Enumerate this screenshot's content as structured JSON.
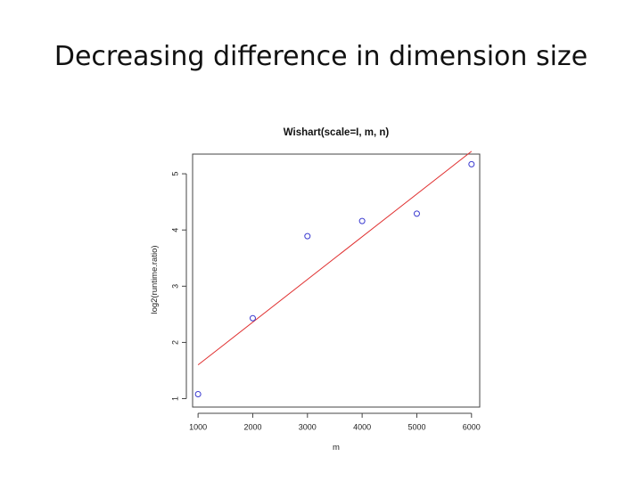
{
  "slide": {
    "title": "Decreasing difference in dimension size"
  },
  "chart_data": {
    "type": "scatter",
    "title": "Wishart(scale=I, m, n)",
    "xlabel": "m",
    "ylabel": "log2(runtime.ratio)",
    "xlim": [
      900,
      6150
    ],
    "ylim": [
      0.85,
      5.35
    ],
    "xticks": [
      1000,
      2000,
      3000,
      4000,
      5000,
      6000
    ],
    "yticks": [
      1,
      2,
      3,
      4,
      5
    ],
    "grid": false,
    "points": [
      {
        "x": 1000,
        "y": 1.08
      },
      {
        "x": 2000,
        "y": 2.43
      },
      {
        "x": 3000,
        "y": 3.89
      },
      {
        "x": 4000,
        "y": 4.16
      },
      {
        "x": 5000,
        "y": 4.29
      },
      {
        "x": 6000,
        "y": 5.17
      }
    ],
    "fit_line": {
      "x": [
        1000,
        6000
      ],
      "y": [
        1.6,
        5.4
      ]
    },
    "point_color": "#3a3ad0",
    "line_color": "#e03030"
  }
}
